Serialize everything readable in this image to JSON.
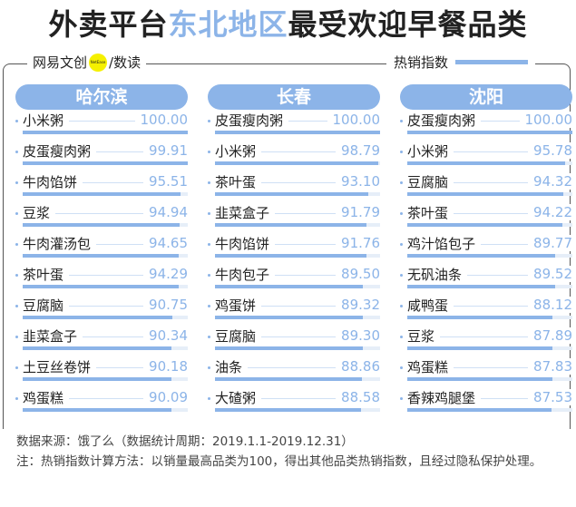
{
  "title": {
    "part1": "外卖平台",
    "highlight": "东北地区",
    "part2": "最受欢迎早餐品类"
  },
  "brand": {
    "name": "网易文创",
    "logo_text": "NetEase",
    "sep": "/",
    "sub": "数读"
  },
  "legend": {
    "label": "热销指数"
  },
  "colors": {
    "accent": "#8cb4e8"
  },
  "cities": [
    {
      "name": "哈尔滨",
      "items": [
        {
          "name": "小米粥",
          "value": "100.00"
        },
        {
          "name": "皮蛋瘦肉粥",
          "value": "99.91"
        },
        {
          "name": "牛肉馅饼",
          "value": "95.51"
        },
        {
          "name": "豆浆",
          "value": "94.94"
        },
        {
          "name": "牛肉灌汤包",
          "value": "94.65"
        },
        {
          "name": "茶叶蛋",
          "value": "94.29"
        },
        {
          "name": "豆腐脑",
          "value": "90.75"
        },
        {
          "name": "韭菜盒子",
          "value": "90.34"
        },
        {
          "name": "土豆丝卷饼",
          "value": "90.18"
        },
        {
          "name": "鸡蛋糕",
          "value": "90.09"
        }
      ]
    },
    {
      "name": "长春",
      "items": [
        {
          "name": "皮蛋瘦肉粥",
          "value": "100.00"
        },
        {
          "name": "小米粥",
          "value": "98.79"
        },
        {
          "name": "茶叶蛋",
          "value": "93.10"
        },
        {
          "name": "韭菜盒子",
          "value": "91.79"
        },
        {
          "name": "牛肉馅饼",
          "value": "91.76"
        },
        {
          "name": "牛肉包子",
          "value": "89.50"
        },
        {
          "name": "鸡蛋饼",
          "value": "89.32"
        },
        {
          "name": "豆腐脑",
          "value": "89.30"
        },
        {
          "name": "油条",
          "value": "88.86"
        },
        {
          "name": "大碴粥",
          "value": "88.58"
        }
      ]
    },
    {
      "name": "沈阳",
      "items": [
        {
          "name": "皮蛋瘦肉粥",
          "value": "100.00"
        },
        {
          "name": "小米粥",
          "value": "95.78"
        },
        {
          "name": "豆腐脑",
          "value": "94.32"
        },
        {
          "name": "茶叶蛋",
          "value": "94.22"
        },
        {
          "name": "鸡汁馅包子",
          "value": "89.77"
        },
        {
          "name": "无矾油条",
          "value": "89.52"
        },
        {
          "name": "咸鸭蛋",
          "value": "88.12"
        },
        {
          "name": "豆浆",
          "value": "87.89"
        },
        {
          "name": "鸡蛋糕",
          "value": "87.83"
        },
        {
          "name": "香辣鸡腿堡",
          "value": "87.53"
        }
      ]
    }
  ],
  "footer": {
    "source": "数据来源：饿了么（数据统计周期：2019.1.1-2019.12.31）",
    "note": "注：热销指数计算方法：以销量最高品类为100，得出其他品类热销指数，且经过隐私保护处理。"
  }
}
